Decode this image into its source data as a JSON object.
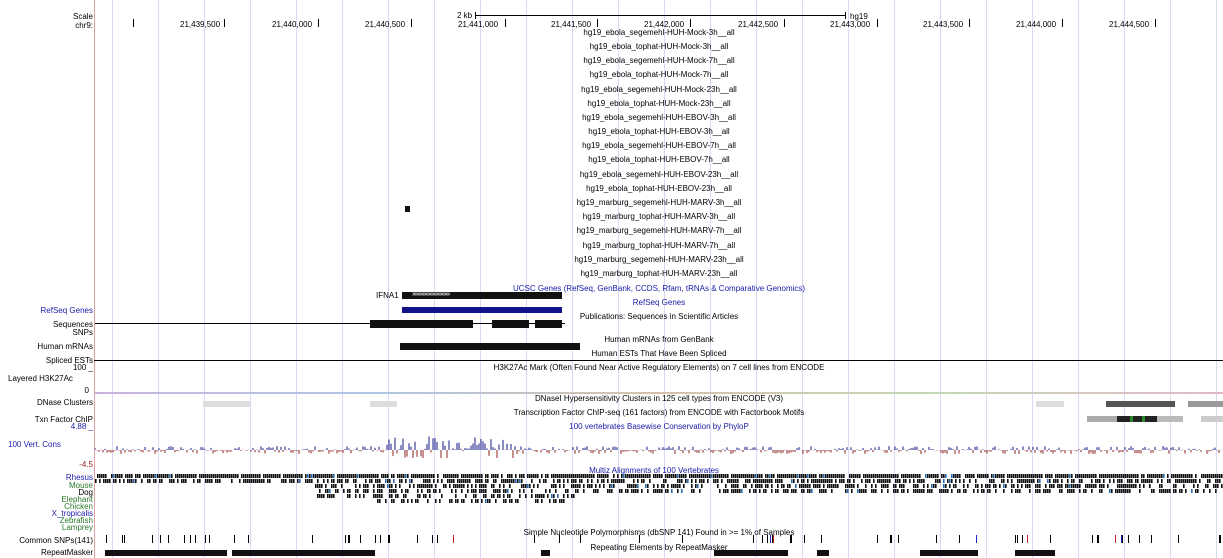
{
  "ruler": {
    "scale_label": "Scale",
    "chrom_label": "chr9:",
    "scale_bar": "2 kb",
    "assembly": "hg19",
    "positions": [
      "21,439,500",
      "21,440,000",
      "21,440,500",
      "21,441,000",
      "21,441,500",
      "21,442,000",
      "21,442,500",
      "21,443,000",
      "21,443,500",
      "21,444,000",
      "21,444,500"
    ]
  },
  "custom_tracks": [
    "hg19_ebola_segemehl-HUH-Mock-3h__all",
    "hg19_ebola_tophat-HUH-Mock-3h__all",
    "hg19_ebola_segemehl-HUH-Mock-7h__all",
    "hg19_ebola_tophat-HUH-Mock-7h__all",
    "hg19_ebola_segemehl-HUH-Mock-23h__all",
    "hg19_ebola_tophat-HUH-Mock-23h__all",
    "hg19_ebola_segemehl-HUH-EBOV-3h__all",
    "hg19_ebola_tophat-HUH-EBOV-3h__all",
    "hg19_ebola_segemehl-HUH-EBOV-7h__all",
    "hg19_ebola_tophat-HUH-EBOV-7h__all",
    "hg19_ebola_segemehl-HUH-EBOV-23h__all",
    "hg19_ebola_tophat-HUH-EBOV-23h__all",
    "hg19_marburg_segemehl-HUH-MARV-3h__all",
    "hg19_marburg_tophat-HUH-MARV-3h__all",
    "hg19_marburg_segemehl-HUH-MARV-7h__all",
    "hg19_marburg_tophat-HUH-MARV-7h__all",
    "hg19_marburg_segemehl-HUH-MARV-23h__all",
    "hg19_marburg_tophat-HUH-MARV-23h__all"
  ],
  "tracks": {
    "ucsc_genes": "UCSC Genes (RefSeq, GenBank, CCDS, Rfam, tRNAs & Comparative Genomics)",
    "gene_name": "IFNA1",
    "refseq_label": "RefSeq Genes",
    "refseq_center": "RefSeq Genes",
    "sequences_label": "Sequences",
    "snps_label": "SNPs",
    "publications": "Publications: Sequences in Scientific Articles",
    "human_mrnas_label": "Human mRNAs",
    "human_mrnas_center": "Human mRNAs from GenBank",
    "spliced_ests_label": "Spliced ESTs",
    "spliced_ests_center": "Human ESTs That Have Been Spliced",
    "h3k27ac_max": "100 _",
    "h3k27ac_label": "Layered H3K27Ac",
    "h3k27ac_zero": "0",
    "h3k27ac_center": "H3K27Ac Mark (Often Found Near Active Regulatory Elements) on 7 cell lines from ENCODE",
    "dnase_label": "DNase Clusters",
    "dnase_center": "DNaseI Hypersensitivity Clusters in 125 cell types from ENCODE (V3)",
    "txn_label": "Txn Factor ChIP",
    "txn_center": "Transcription Factor ChIP-seq (161 factors) from ENCODE with Factorbook Motifs",
    "cons_max": "4.88 _",
    "cons_label": "100 Vert. Cons",
    "cons_min": "-4.5",
    "cons_center": "100 vertebrates Basewise Conservation by PhyloP",
    "multiz_center": "Multiz Alignments of 100 Vertebrates",
    "species": [
      "Rhesus",
      "Mouse",
      "Dog",
      "Elephant",
      "Chicken",
      "X_tropicalis",
      "Zebrafish",
      "Lamprey"
    ],
    "snp_label": "Common SNPs(141)",
    "snp_center": "Simple Nucleotide Polymorphisms (dbSNP 141) Found in >= 1% of Samples",
    "repeat_label": "RepeatMasker",
    "repeat_center": "Repeating Elements by RepeatMasker"
  },
  "colors": {
    "link_blue": "#1a1aa8",
    "species_green": "#2a7a2a",
    "gene_blue": "#12128a",
    "grid": "#d9d9f3"
  }
}
